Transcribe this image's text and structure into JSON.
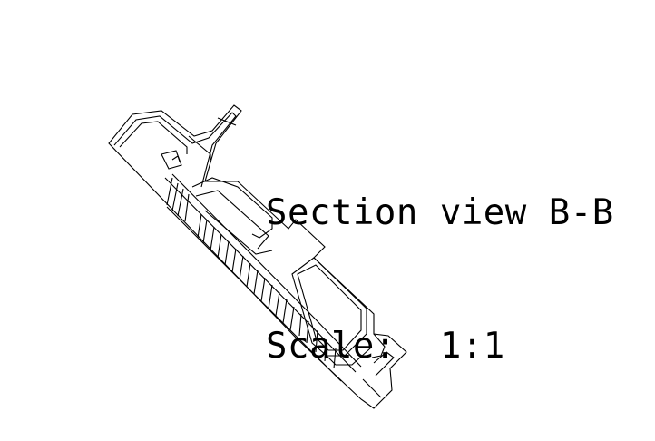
{
  "section_label": "Section view B-B",
  "scale_label": "Scale:  1:1",
  "colors": {
    "background": "#ffffff",
    "linework": "#000000"
  }
}
